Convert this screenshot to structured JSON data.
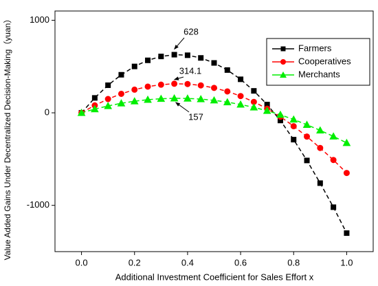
{
  "chart_data": {
    "type": "line",
    "xlabel": "Additional Investment Coefficient for Sales Effort x",
    "ylabel": "Value Added Gains Under Decentralized Decision-Making（yuan）",
    "x": [
      0,
      0.05,
      0.1,
      0.15,
      0.2,
      0.25,
      0.3,
      0.35,
      0.4,
      0.45,
      0.5,
      0.55,
      0.6,
      0.65,
      0.7,
      0.75,
      0.8,
      0.85,
      0.9,
      0.95,
      1.0
    ],
    "series": [
      {
        "name": "Farmers",
        "color": "#000000",
        "marker": "square",
        "values": [
          0,
          161,
          298,
          411,
          501,
          567,
          609,
          628,
          622,
          593,
          539,
          462,
          362,
          237,
          89,
          -83,
          -290,
          -515,
          -760,
          -1020,
          -1300
        ]
      },
      {
        "name": "Cooperatives",
        "color": "#ff0000",
        "marker": "circle",
        "values": [
          0,
          80,
          149,
          205,
          250,
          283,
          304,
          314.1,
          311,
          296,
          269,
          231,
          181,
          118,
          44,
          -42,
          -145,
          -257,
          -380,
          -510,
          -650
        ]
      },
      {
        "name": "Merchants",
        "color": "#00ee00",
        "marker": "triangle",
        "values": [
          0,
          40,
          74,
          103,
          125,
          142,
          152,
          157,
          155,
          148,
          135,
          115,
          90,
          59,
          22,
          -21,
          -72,
          -129,
          -190,
          -255,
          -325
        ]
      }
    ],
    "annotations": [
      {
        "text": "628",
        "x": 0.35,
        "y": 628
      },
      {
        "text": "314.1",
        "x": 0.35,
        "y": 314.1
      },
      {
        "text": "157",
        "x": 0.35,
        "y": 157
      }
    ],
    "xlim": [
      -0.1,
      1.1
    ],
    "ylim": [
      -1500,
      1100
    ],
    "xticks": [
      {
        "value": 0,
        "label": "0.0"
      },
      {
        "value": 0.2,
        "label": "0.2"
      },
      {
        "value": 0.4,
        "label": "0.4"
      },
      {
        "value": 0.6,
        "label": "0.6"
      },
      {
        "value": 0.8,
        "label": "0.8"
      },
      {
        "value": 1.0,
        "label": "1.0"
      }
    ],
    "yticks": [
      -1000,
      0,
      1000
    ],
    "legend": "upper right",
    "grid": false
  }
}
